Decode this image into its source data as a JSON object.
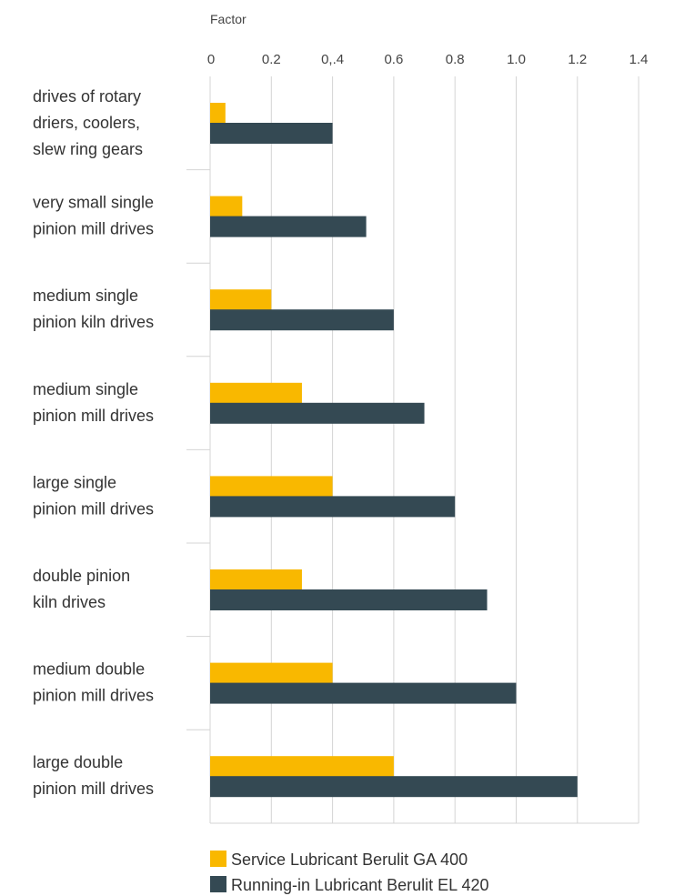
{
  "chart_data": {
    "type": "bar",
    "orientation": "horizontal",
    "xlabel": "Factor",
    "xlim": [
      0,
      1.4
    ],
    "tick_labels": [
      "0",
      "0.2",
      "0,.4",
      "0.6",
      "0.8",
      "1.0",
      "1.2",
      "1.4"
    ],
    "grid": true,
    "legend_position": "bottom-left",
    "categories": [
      [
        "drives of rotary",
        "driers, coolers,",
        "slew ring gears"
      ],
      [
        "very small single",
        "pinion mill drives"
      ],
      [
        "medium single",
        "pinion kiln drives"
      ],
      [
        "medium single",
        "pinion mill drives"
      ],
      [
        "large single",
        "pinion mill drives"
      ],
      [
        "double pinion",
        "kiln drives"
      ],
      [
        "medium double",
        "pinion mill drives"
      ],
      [
        "large double",
        "pinion mill drives"
      ]
    ],
    "series": [
      {
        "name": "Service Lubricant Berulit GA 400",
        "color": "#f9b800",
        "values": [
          0.05,
          0.105,
          0.2,
          0.3,
          0.4,
          0.3,
          0.4,
          0.6
        ]
      },
      {
        "name": "Running-in Lubricant Berulit EL 420",
        "color": "#344953",
        "values": [
          0.4,
          0.51,
          0.6,
          0.7,
          0.8,
          0.905,
          1.0,
          1.2
        ]
      }
    ]
  },
  "colors": {
    "grid": "#d4d4d4",
    "text": "#333333"
  }
}
